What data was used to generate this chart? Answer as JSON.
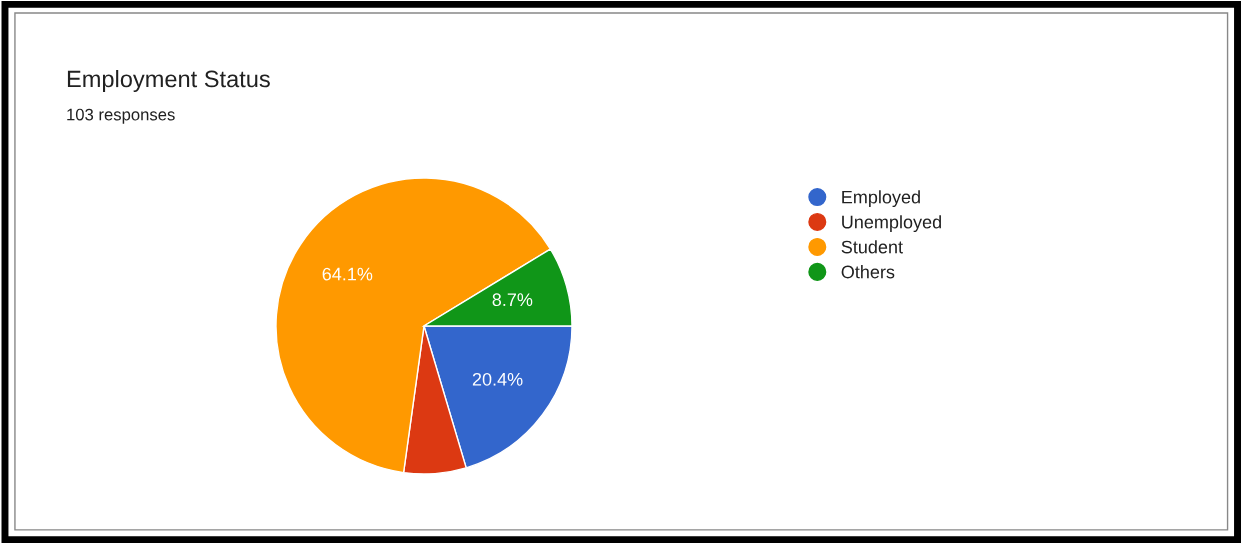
{
  "chart_data": {
    "type": "pie",
    "title": "Employment Status",
    "subtitle": "103 responses",
    "categories": [
      "Employed",
      "Unemployed",
      "Student",
      "Others"
    ],
    "values": [
      20.4,
      6.8,
      64.1,
      8.7
    ],
    "value_labels": [
      "20.4%",
      null,
      "64.1%",
      "8.7%"
    ],
    "colors": [
      "#3366cc",
      "#dc3912",
      "#ff9900",
      "#109618"
    ],
    "legend": "right"
  }
}
